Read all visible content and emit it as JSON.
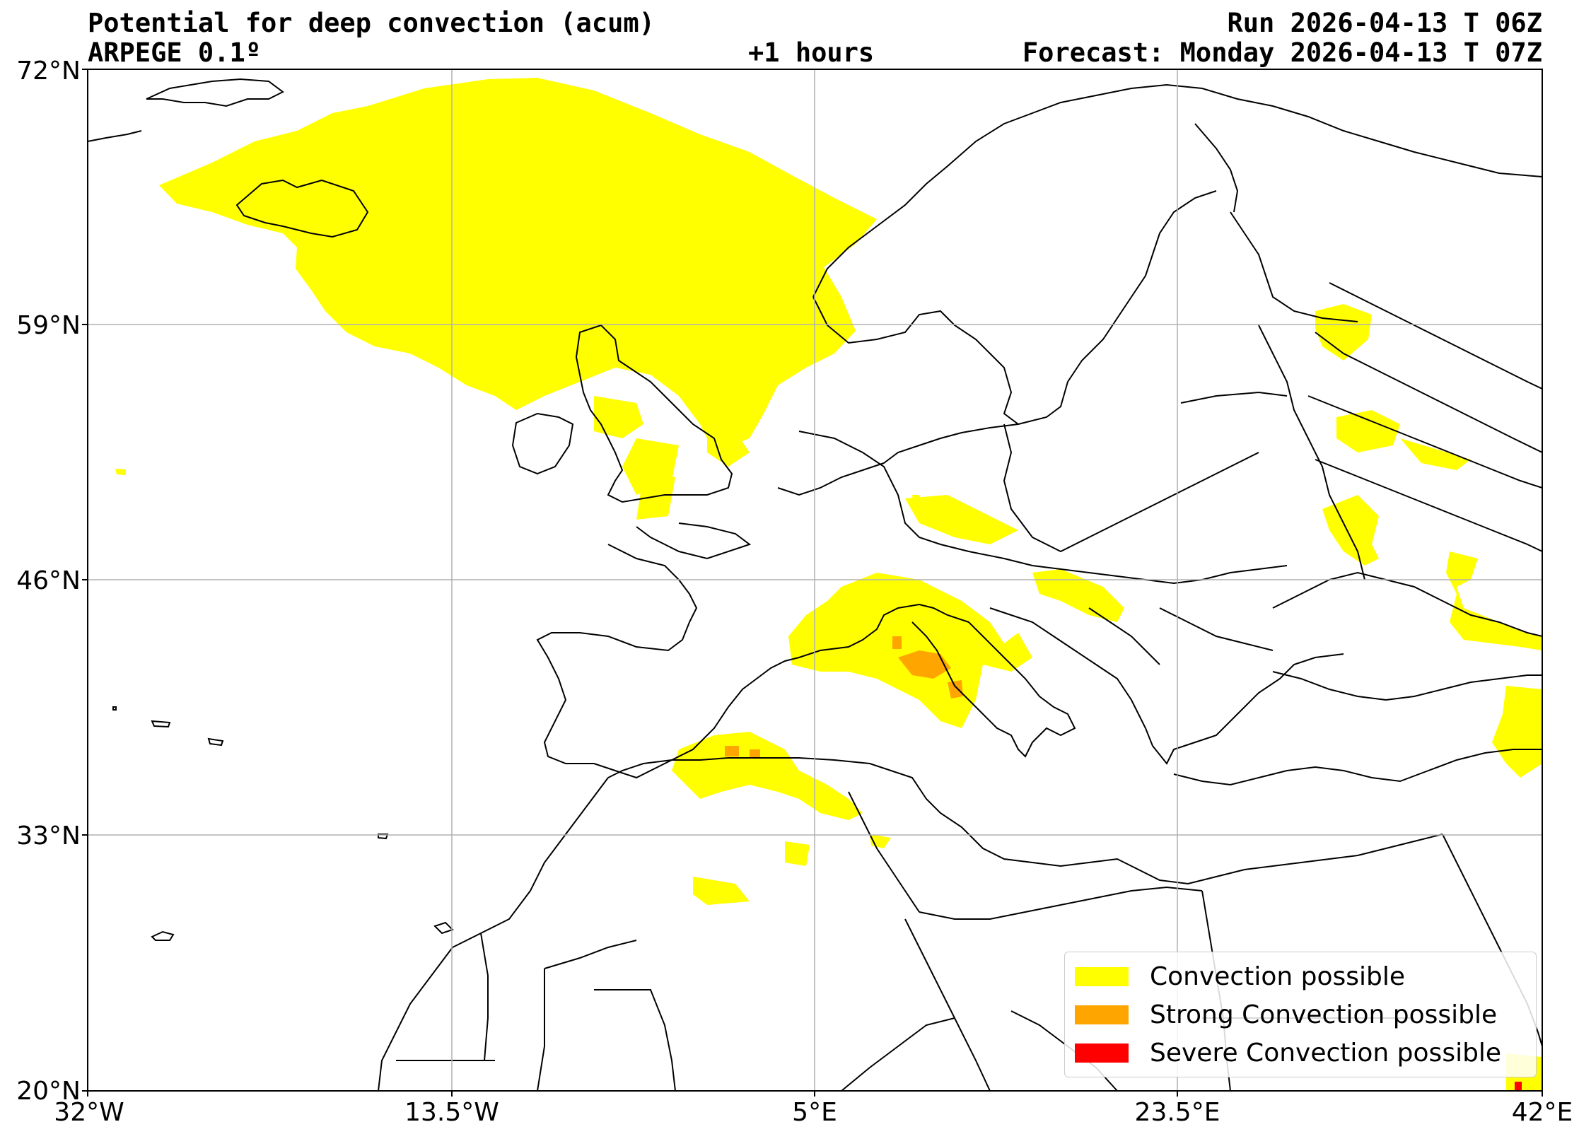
{
  "header": {
    "title": "Potential for deep convection (acum)",
    "model": "ARPEGE 0.1º",
    "lead": "+1 hours",
    "run": "Run 2026-04-13 T 06Z",
    "forecast": "Forecast: Monday 2026-04-13 T 07Z"
  },
  "axes": {
    "lat_labels": [
      "72°N",
      "59°N",
      "46°N",
      "33°N",
      "20°N"
    ],
    "lon_labels": [
      "32°W",
      "13.5°W",
      "5°E",
      "23.5°E",
      "42°E"
    ]
  },
  "legend": {
    "items": [
      {
        "label": "Convection possible",
        "color": "#ffff00"
      },
      {
        "label": "Strong Convection possible",
        "color": "#ffa500"
      },
      {
        "label": "Severe Convection possible",
        "color": "#ff0000"
      }
    ]
  },
  "map_extent": {
    "lon": [
      -32,
      42
    ],
    "lat": [
      20,
      72
    ]
  },
  "colors": {
    "convection": "#ffff00",
    "strong": "#ffa500",
    "severe": "#ff0000",
    "coast": "#000000",
    "grid": "#b0b0b0"
  }
}
